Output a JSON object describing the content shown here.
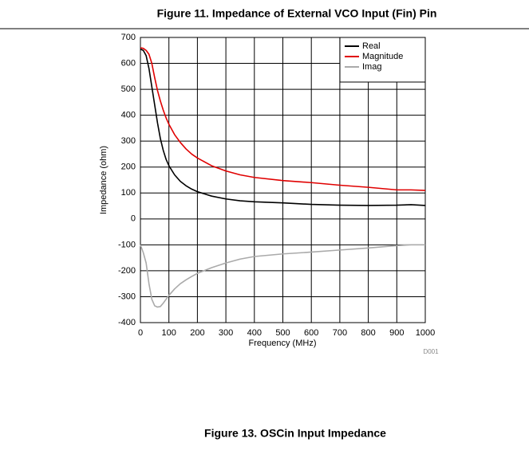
{
  "chart_data": {
    "type": "line",
    "title": "Figure 11. Impedance of External VCO Input (Fin) Pin",
    "footer_title": "Figure 13. OSCin Input Impedance",
    "note": "D001",
    "xlabel": "Frequency (MHz)",
    "ylabel": "Impedance (ohm)",
    "x": [
      0,
      10,
      20,
      30,
      40,
      50,
      60,
      70,
      80,
      90,
      100,
      120,
      140,
      160,
      180,
      200,
      250,
      300,
      350,
      400,
      500,
      600,
      700,
      800,
      900,
      950,
      1000
    ],
    "series": [
      {
        "name": "Real",
        "color": "#000000",
        "values": [
          655,
          650,
          630,
          580,
          510,
          440,
          370,
          310,
          265,
          230,
          205,
          170,
          145,
          128,
          115,
          105,
          88,
          77,
          70,
          66,
          62,
          56,
          53,
          52,
          53,
          55,
          52
        ]
      },
      {
        "name": "Magnitude",
        "color": "#e00000",
        "values": [
          660,
          658,
          650,
          635,
          600,
          545,
          495,
          455,
          420,
          390,
          365,
          325,
          295,
          270,
          250,
          235,
          205,
          185,
          170,
          160,
          148,
          140,
          130,
          122,
          112,
          112,
          110
        ]
      },
      {
        "name": "Imag",
        "color": "#aaaaaa",
        "values": [
          -100,
          -130,
          -170,
          -250,
          -310,
          -335,
          -340,
          -338,
          -325,
          -310,
          -295,
          -270,
          -250,
          -235,
          -222,
          -210,
          -188,
          -170,
          -155,
          -145,
          -135,
          -128,
          -120,
          -112,
          -103,
          -100,
          -100
        ]
      }
    ],
    "xlim": [
      0,
      1000
    ],
    "xticks": [
      0,
      100,
      200,
      300,
      400,
      500,
      600,
      700,
      800,
      900,
      1000
    ],
    "ylim": [
      -400,
      700
    ],
    "yticks": [
      -400,
      -300,
      -200,
      -100,
      0,
      100,
      200,
      300,
      400,
      500,
      600,
      700
    ],
    "grid": true,
    "legend": "upper right"
  }
}
